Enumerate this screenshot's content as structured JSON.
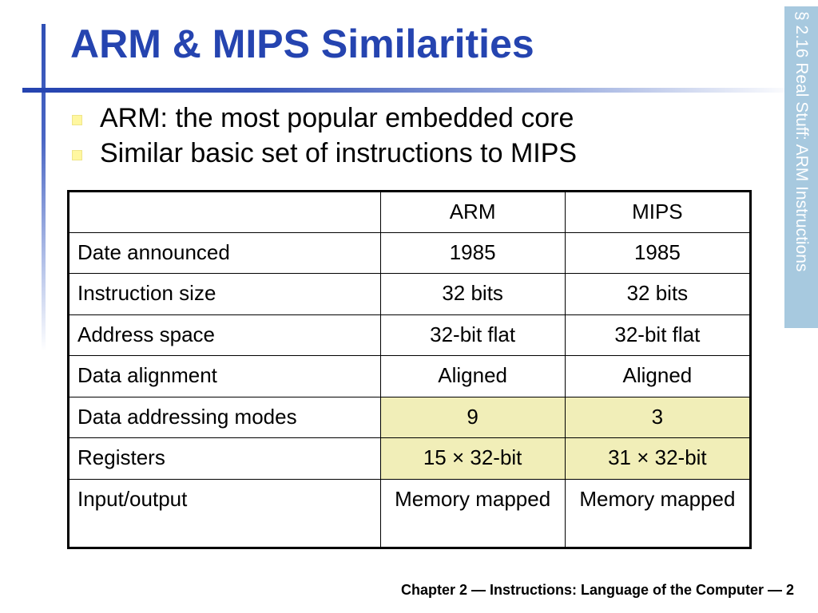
{
  "slide": {
    "title": "ARM & MIPS Similarities",
    "side_tab": "§ 2.16 Real Stuff: ARM Instructions",
    "bullets": [
      "ARM: the most popular embedded core",
      "Similar basic set of instructions to MIPS"
    ],
    "footer": "Chapter 2 — Instructions: Language of the Computer — 2"
  },
  "table": {
    "headers": [
      "",
      "ARM",
      "MIPS"
    ],
    "rows": [
      {
        "label": "Date announced",
        "arm": "1985",
        "mips": "1985"
      },
      {
        "label": "Instruction size",
        "arm": "32 bits",
        "mips": "32 bits"
      },
      {
        "label": "Address space",
        "arm": "32-bit flat",
        "mips": "32-bit flat"
      },
      {
        "label": "Data alignment",
        "arm": "Aligned",
        "mips": "Aligned"
      },
      {
        "label": "Data addressing modes",
        "arm": "9",
        "mips": "3",
        "highlighted": true
      },
      {
        "label": "Registers",
        "arm": "15 × 32-bit",
        "mips": "31 × 32-bit",
        "highlighted": true
      },
      {
        "label": "Input/output",
        "arm": "Memory mapped",
        "mips": "Memory mapped"
      }
    ]
  },
  "colors": {
    "title": "#2544b0",
    "side_tab_bg": "#a7c9df",
    "highlight": "#f1eeb8",
    "bullet": "#fff7a0"
  }
}
